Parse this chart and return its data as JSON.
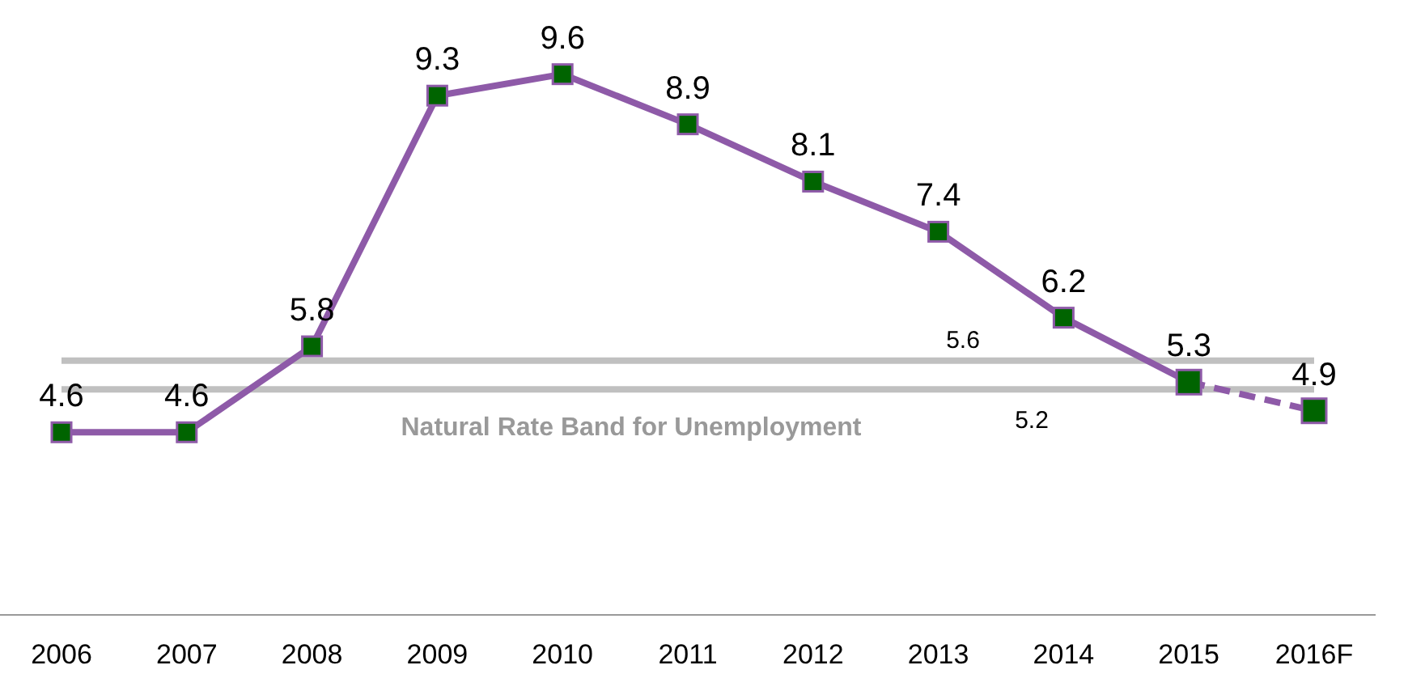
{
  "chart_data": {
    "type": "line",
    "categories": [
      "2006",
      "2007",
      "2008",
      "2009",
      "2010",
      "2011",
      "2012",
      "2013",
      "2014",
      "2015",
      "2016F"
    ],
    "series": [
      {
        "color": "#8e5aa8",
        "line_style": "solid",
        "values": [
          4.6,
          4.6,
          5.8,
          9.3,
          9.6,
          8.9,
          8.1,
          7.4,
          6.2,
          5.3,
          null
        ],
        "value_labels": [
          "4.6",
          "4.6",
          "5.8",
          "9.3",
          "9.6",
          "8.9",
          "8.1",
          "7.4",
          "6.2",
          "5.3",
          null
        ]
      },
      {
        "color": "#8e5aa8",
        "line_style": "dashed",
        "values": [
          null,
          null,
          null,
          null,
          null,
          null,
          null,
          null,
          null,
          5.3,
          4.9
        ],
        "value_labels": [
          null,
          null,
          null,
          null,
          null,
          null,
          null,
          null,
          null,
          null,
          "4.9"
        ]
      }
    ],
    "tick_labels": "x",
    "marker": "square",
    "ref_lines": [
      {
        "axis": "y",
        "value": 5.6,
        "label": "5.6",
        "color": "#c0c0c0"
      },
      {
        "axis": "y",
        "value": 5.2,
        "label": "5.2",
        "color": "#c0c0c0"
      }
    ],
    "annotations": [
      "Natural Rate Band for Unemployment"
    ]
  }
}
